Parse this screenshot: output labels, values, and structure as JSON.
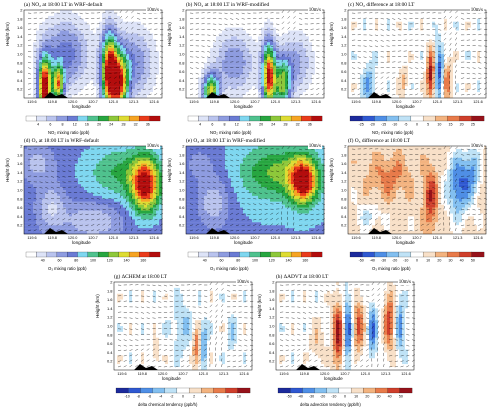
{
  "chart_data": [
    {
      "id": "a",
      "type": "heatmap",
      "title": "(a) NO₂ at 18:00 LT in WRF-default",
      "xlabel": "longitude",
      "ylabel": "Height (km)",
      "ref_vector": "10m/s",
      "colorbar_label": "NO₂ mixing ratio (ppb)",
      "x_ticks": [
        "119.6",
        "119.8",
        "120.0",
        "120.7",
        "121.0",
        "121.3",
        "121.6"
      ],
      "y_ticks": [
        "0.2",
        "0.4",
        "0.6",
        "0.8",
        "1.0",
        "1.2",
        "1.4",
        "1.6",
        "1.8",
        "2"
      ],
      "colorbar_ticks": [
        "4",
        "6",
        "8",
        "12",
        "16",
        "20",
        "24",
        "28",
        "32",
        "36"
      ],
      "colormap": "seq",
      "hotspots": [
        [
          0.15,
          0.9,
          0.05,
          0.35,
          1
        ],
        [
          0.25,
          0.85,
          0.04,
          0.2,
          0.7
        ],
        [
          0.62,
          0.72,
          0.06,
          0.45,
          1
        ],
        [
          0.7,
          0.85,
          0.06,
          0.35,
          0.7
        ],
        [
          0.3,
          0.5,
          0.18,
          0.4,
          0.35
        ],
        [
          0.8,
          0.6,
          0.15,
          0.4,
          0.3
        ]
      ]
    },
    {
      "id": "b",
      "type": "heatmap",
      "title": "(b) NO₂ at 18:00 LT in WRF-modified",
      "xlabel": "longitude",
      "ylabel": "Height (km)",
      "ref_vector": "10m/s",
      "colorbar_label": "NO₂ mixing ratio (ppb)",
      "x_ticks": [
        "119.6",
        "119.8",
        "120.0",
        "120.7",
        "121.0",
        "121.3",
        "121.6"
      ],
      "y_ticks": [
        "0.2",
        "0.4",
        "0.6",
        "0.8",
        "1.0",
        "1.2",
        "1.4",
        "1.6",
        "1.8",
        "2"
      ],
      "colorbar_ticks": [
        "4",
        "6",
        "8",
        "12",
        "16",
        "20",
        "24",
        "28",
        "32",
        "36"
      ],
      "colormap": "seq",
      "hotspots": [
        [
          0.18,
          0.92,
          0.06,
          0.2,
          0.7
        ],
        [
          0.6,
          0.75,
          0.05,
          0.4,
          0.9
        ],
        [
          0.7,
          0.85,
          0.06,
          0.3,
          0.6
        ],
        [
          0.35,
          0.6,
          0.15,
          0.35,
          0.3
        ],
        [
          0.8,
          0.6,
          0.12,
          0.35,
          0.25
        ]
      ]
    },
    {
      "id": "c",
      "type": "heatmap",
      "title": "(c) NO₂ difference at 18:00 LT",
      "xlabel": "longitude",
      "ylabel": "Height (km)",
      "ref_vector": "10m/s",
      "colorbar_label": "NO₂ mixing ratio (ppb)",
      "x_ticks": [
        "119.6",
        "119.8",
        "120.0",
        "120.7",
        "121.0",
        "121.3",
        "121.6"
      ],
      "y_ticks": [
        "0.2",
        "0.4",
        "0.6",
        "0.8",
        "1.0",
        "1.2",
        "1.4",
        "1.6",
        "1.8",
        "2"
      ],
      "colorbar_ticks": [
        "-25",
        "-20",
        "-15",
        "-10",
        "-5",
        "0",
        "5",
        "10",
        "15",
        "20",
        "25"
      ],
      "colormap": "div",
      "hotspots": [
        [
          0.15,
          0.85,
          0.04,
          0.25,
          -0.5
        ],
        [
          0.6,
          0.75,
          0.03,
          0.3,
          1
        ],
        [
          0.66,
          0.7,
          0.03,
          0.3,
          -0.8
        ],
        [
          0.72,
          0.8,
          0.03,
          0.25,
          0.6
        ],
        [
          0.4,
          0.8,
          0.03,
          0.2,
          0.3
        ]
      ]
    },
    {
      "id": "d",
      "type": "heatmap",
      "title": "(d) O₃ at 18:00 LT in WRF-default",
      "xlabel": "longitude",
      "ylabel": "Height (km)",
      "ref_vector": "10m/s",
      "colorbar_label": "O₃ mixing ratio (ppb)",
      "x_ticks": [
        "119.6",
        "119.8",
        "120.0",
        "120.7",
        "121.0",
        "121.3",
        "121.6"
      ],
      "y_ticks": [
        "0.2",
        "0.4",
        "0.6",
        "0.8",
        "1.0",
        "1.2",
        "1.4",
        "1.6",
        "1.8",
        "2"
      ],
      "colorbar_ticks": [
        "40",
        "60",
        "80",
        "100",
        "120",
        "140",
        "160"
      ],
      "colormap": "seq",
      "base": 0.35,
      "hotspots": [
        [
          0.88,
          0.45,
          0.1,
          0.3,
          0.6
        ],
        [
          0.7,
          0.3,
          0.25,
          0.3,
          0.2
        ],
        [
          0.2,
          0.7,
          0.1,
          0.25,
          -0.2
        ],
        [
          0.1,
          0.2,
          0.12,
          0.2,
          -0.15
        ],
        [
          0.5,
          0.85,
          0.2,
          0.2,
          -0.2
        ]
      ]
    },
    {
      "id": "e",
      "type": "heatmap",
      "title": "(e) O₃ at 18:00 LT in WRF-modified",
      "xlabel": "longitude",
      "ylabel": "Height (km)",
      "ref_vector": "10m/s",
      "colorbar_label": "O₃ mixing ratio (ppb)",
      "x_ticks": [
        "119.6",
        "119.8",
        "120.0",
        "120.7",
        "121.0",
        "121.3",
        "121.6"
      ],
      "y_ticks": [
        "0.2",
        "0.4",
        "0.6",
        "0.8",
        "1.0",
        "1.2",
        "1.4",
        "1.6",
        "1.8",
        "2"
      ],
      "colorbar_ticks": [
        "40",
        "60",
        "80",
        "100",
        "120",
        "140",
        "160"
      ],
      "colormap": "seq",
      "base": 0.38,
      "hotspots": [
        [
          0.85,
          0.4,
          0.1,
          0.25,
          0.6
        ],
        [
          0.65,
          0.3,
          0.25,
          0.3,
          0.25
        ],
        [
          0.2,
          0.65,
          0.12,
          0.3,
          -0.2
        ],
        [
          0.1,
          0.2,
          0.12,
          0.2,
          -0.1
        ]
      ]
    },
    {
      "id": "f",
      "type": "heatmap",
      "title": "(f) O₃ difference at 18:00 LT",
      "xlabel": "longitude",
      "ylabel": "Height (km)",
      "ref_vector": "10m/s",
      "colorbar_label": "O₃ mixing ratio (ppb)",
      "x_ticks": [
        "119.6",
        "119.8",
        "120.0",
        "120.7",
        "121.0",
        "121.3",
        "121.6"
      ],
      "y_ticks": [
        "0.2",
        "0.4",
        "0.6",
        "0.8",
        "1.0",
        "1.2",
        "1.4",
        "1.6",
        "1.8",
        "2"
      ],
      "colorbar_ticks": [
        "-50",
        "-40",
        "-30",
        "-20",
        "-10",
        "0",
        "10",
        "20",
        "30",
        "40",
        "50"
      ],
      "colormap": "div",
      "base": 0.18,
      "hotspots": [
        [
          0.8,
          0.45,
          0.08,
          0.35,
          -0.9
        ],
        [
          0.9,
          0.3,
          0.06,
          0.3,
          -0.6
        ],
        [
          0.6,
          0.6,
          0.05,
          0.35,
          0.7
        ],
        [
          0.3,
          0.35,
          0.15,
          0.25,
          0.4
        ],
        [
          0.15,
          0.8,
          0.1,
          0.15,
          -0.3
        ]
      ]
    },
    {
      "id": "g",
      "type": "heatmap",
      "title": "(g) ΔCHEM at 18:00 LT",
      "xlabel": "longitude",
      "ylabel": "Height (km)",
      "ref_vector": "10m/s",
      "colorbar_label": "delta chemical tendency (ppb/h)",
      "x_ticks": [
        "119.6",
        "119.8",
        "120.0",
        "120.7",
        "121.0",
        "121.3",
        "121.6"
      ],
      "y_ticks": [
        "0.2",
        "0.4",
        "0.6",
        "0.8",
        "1.0",
        "1.2",
        "1.4",
        "1.6",
        "1.8",
        "2"
      ],
      "colorbar_ticks": [
        "-10",
        "-8",
        "-6",
        "-4",
        "-2",
        "0",
        "2",
        "4",
        "6",
        "8",
        "10"
      ],
      "colormap": "div",
      "hotspots": [
        [
          0.6,
          0.75,
          0.03,
          0.25,
          0.7
        ],
        [
          0.65,
          0.7,
          0.025,
          0.25,
          -0.6
        ],
        [
          0.5,
          0.5,
          0.08,
          0.3,
          -0.3
        ],
        [
          0.3,
          0.8,
          0.03,
          0.15,
          0.3
        ],
        [
          0.85,
          0.6,
          0.03,
          0.2,
          -0.3
        ]
      ]
    },
    {
      "id": "h",
      "type": "heatmap",
      "title": "(h) ΔADVT at 18:00 LT",
      "xlabel": "longitude",
      "ylabel": "Height (km)",
      "ref_vector": "10m/s",
      "colorbar_label": "delta advection tendency (ppb/h)",
      "x_ticks": [
        "119.6",
        "119.8",
        "120.0",
        "120.7",
        "121.0",
        "121.3",
        "121.6"
      ],
      "y_ticks": [
        "0.2",
        "0.4",
        "0.6",
        "0.8",
        "1.0",
        "1.2",
        "1.4",
        "1.6",
        "1.8",
        "2"
      ],
      "colorbar_ticks": [
        "-50",
        "-40",
        "-30",
        "-20",
        "-10",
        "0",
        "10",
        "20",
        "30",
        "40",
        "50"
      ],
      "colormap": "div",
      "hotspots": [
        [
          0.45,
          0.6,
          0.04,
          0.4,
          1
        ],
        [
          0.52,
          0.55,
          0.03,
          0.4,
          -0.8
        ],
        [
          0.6,
          0.5,
          0.04,
          0.35,
          0.7
        ],
        [
          0.7,
          0.55,
          0.03,
          0.3,
          -0.7
        ],
        [
          0.82,
          0.45,
          0.04,
          0.35,
          0.8
        ],
        [
          0.9,
          0.5,
          0.03,
          0.3,
          -0.6
        ],
        [
          0.3,
          0.7,
          0.05,
          0.25,
          0.3
        ]
      ]
    }
  ]
}
